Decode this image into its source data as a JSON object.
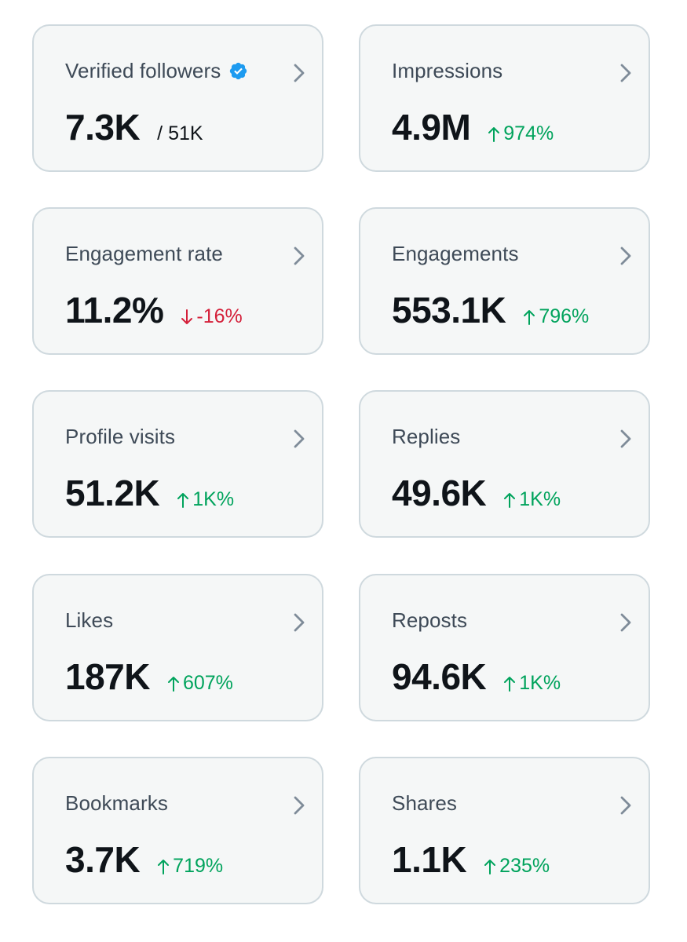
{
  "cards": [
    {
      "title": "Verified followers",
      "value": "7.3K",
      "total": "/ 51K",
      "verified": true
    },
    {
      "title": "Impressions",
      "value": "4.9M",
      "change": "974%",
      "direction": "up"
    },
    {
      "title": "Engagement rate",
      "value": "11.2%",
      "change": "-16%",
      "direction": "down"
    },
    {
      "title": "Engagements",
      "value": "553.1K",
      "change": "796%",
      "direction": "up"
    },
    {
      "title": "Profile visits",
      "value": "51.2K",
      "change": "1K%",
      "direction": "up"
    },
    {
      "title": "Replies",
      "value": "49.6K",
      "change": "1K%",
      "direction": "up"
    },
    {
      "title": "Likes",
      "value": "187K",
      "change": "607%",
      "direction": "up"
    },
    {
      "title": "Reposts",
      "value": "94.6K",
      "change": "1K%",
      "direction": "up"
    },
    {
      "title": "Bookmarks",
      "value": "3.7K",
      "change": "719%",
      "direction": "up"
    },
    {
      "title": "Shares",
      "value": "1.1K",
      "change": "235%",
      "direction": "up"
    }
  ],
  "colors": {
    "up": "#00a35c",
    "down": "#d4203a",
    "verified": "#1d9bf0",
    "chevron": "#7f8c99"
  },
  "icons": {
    "verified": "verified-badge-icon",
    "chevron": "chevron-right-icon",
    "up": "arrow-up-icon",
    "down": "arrow-down-icon"
  }
}
